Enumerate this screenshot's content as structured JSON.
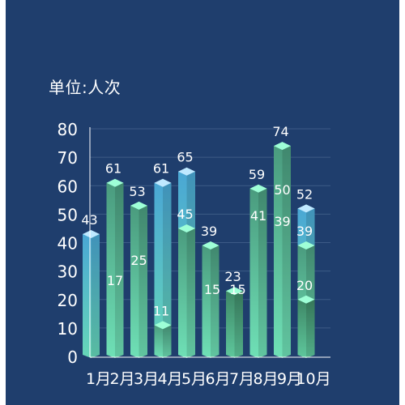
{
  "unit_label": "单位:人次",
  "colors": {
    "background": "#1f3e6d",
    "blue_top": "#4aa7d4",
    "blue_bottom": "#66d7b8",
    "green_top": "#4a9b7e",
    "green_bottom": "#6fe0b6",
    "dark_top": "#3e8766",
    "dark_bottom": "#5ec79c",
    "cap_blue": "#bfe9ff",
    "cap_green": "#9effd7",
    "axis": "#ffffff",
    "grid": "#3d5b86"
  },
  "chart_data": {
    "type": "bar",
    "categories": [
      "1月",
      "2月",
      "3月",
      "4月",
      "5月",
      "6月",
      "7月",
      "8月",
      "9月",
      "10月"
    ],
    "ylim": [
      0,
      80
    ],
    "yticks": [
      0,
      10,
      20,
      30,
      40,
      50,
      60,
      70,
      80
    ],
    "grid": true,
    "bars": [
      {
        "category": "1月",
        "value": 43,
        "style": "blue",
        "label": "43"
      },
      {
        "category": "2月",
        "value": 61,
        "style": "green",
        "label": "61"
      },
      {
        "category": "3月",
        "value": 53,
        "style": "green",
        "label": "53"
      },
      {
        "category": "4月",
        "value": 61,
        "style": "blue",
        "label": "61"
      },
      {
        "category": "4月",
        "value": 11,
        "style": "green",
        "label": "11"
      },
      {
        "category": "5月",
        "value": 65,
        "style": "blue",
        "label": "65"
      },
      {
        "category": "5月",
        "value": 45,
        "style": "green",
        "label": "45"
      },
      {
        "category": "6月",
        "value": 39,
        "style": "green",
        "label": "39"
      },
      {
        "category": "7月",
        "value": 23,
        "style": "dark",
        "label": "23"
      },
      {
        "category": "8月",
        "value": 59,
        "style": "green",
        "label": "59"
      },
      {
        "category": "9月",
        "value": 74,
        "style": "green",
        "label": "74"
      },
      {
        "category": "10月",
        "value": 52,
        "style": "blue",
        "label": "52"
      },
      {
        "category": "10月",
        "value": 39,
        "style": "green",
        "label": "39"
      },
      {
        "category": "10月",
        "value": 20,
        "style": "dark",
        "label": "20"
      }
    ],
    "inner_labels": [
      {
        "category": "2月",
        "text": "17"
      },
      {
        "category": "3月",
        "text": "25"
      },
      {
        "category": "6月",
        "text": "15"
      },
      {
        "category": "7月",
        "text": "15"
      },
      {
        "category": "8月",
        "text": "41"
      },
      {
        "category": "9月",
        "text": "50"
      },
      {
        "category": "9月",
        "text": "39"
      }
    ]
  }
}
